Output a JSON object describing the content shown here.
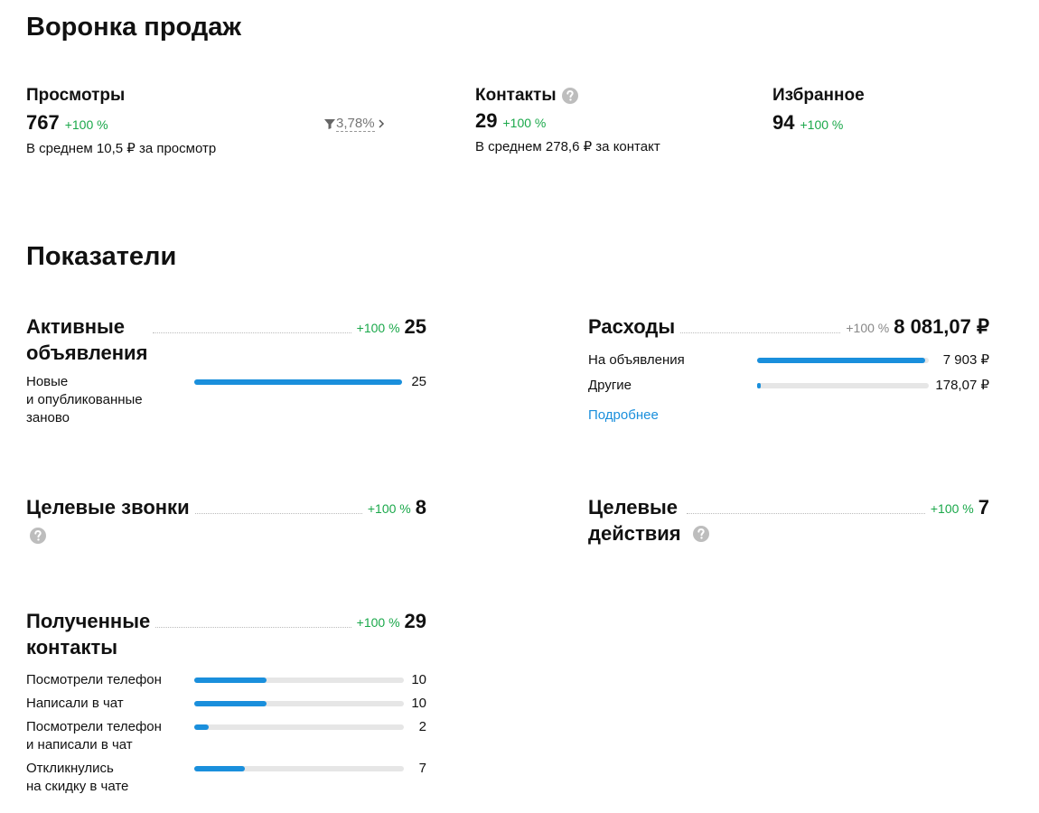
{
  "funnel": {
    "title": "Воронка продаж",
    "views": {
      "label": "Просмотры",
      "value": 767,
      "change": "+100 %",
      "conversion": "3,78%",
      "average": "В среднем 10,5 ₽ за просмотр"
    },
    "contacts": {
      "label": "Контакты",
      "value": 29,
      "change": "+100 %",
      "average": "В среднем 278,6 ₽ за контакт"
    },
    "favorites": {
      "label": "Избранное",
      "value": 94,
      "change": "+100 %"
    }
  },
  "metrics": {
    "title": "Показатели",
    "cards": [
      {
        "title": "Активные\nобъявления",
        "change": "+100 %",
        "total": 25,
        "items": [
          {
            "label": "Новые\nи опубликованные\nзаново",
            "value": 25
          }
        ]
      },
      {
        "title": "Расходы",
        "change": "+100 %",
        "total": {
          "value": 8081.07,
          "label": "8 081,07 ₽"
        },
        "items": [
          {
            "label": "На объявления",
            "value": {
              "value": 7903,
              "label": "7 903 ₽"
            }
          },
          {
            "label": "Другие",
            "value": {
              "value": 178.07,
              "label": "178,07 ₽"
            }
          }
        ],
        "link": "Подробнее"
      },
      {
        "title": "Целевые звонки",
        "change": "+100 %",
        "total": 8
      },
      {
        "title": "Целевые\nдействия",
        "change": "+100 %",
        "total": 7
      },
      {
        "title": "Полученные\nконтакты",
        "change": "+100 %",
        "total": 29,
        "items": [
          {
            "label": "Посмотрели телефон",
            "value": 10
          },
          {
            "label": "Написали в чат",
            "value": 10
          },
          {
            "label": "Посмотрели телефон\nи написали в чат",
            "value": 2
          },
          {
            "label": "Откликнулись\nна скидку в чате",
            "value": 7
          }
        ]
      }
    ]
  }
}
